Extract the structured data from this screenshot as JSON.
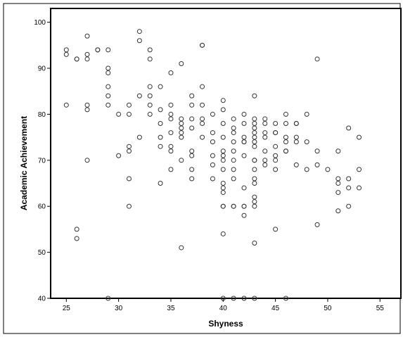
{
  "chart_data": {
    "type": "scatter",
    "xlabel": "Shyness",
    "ylabel": "Academic Achievement",
    "xlim": [
      23.5,
      57
    ],
    "ylim": [
      40,
      103
    ],
    "x_ticks": [
      25,
      30,
      35,
      40,
      45,
      50,
      55
    ],
    "y_ticks": [
      40,
      50,
      60,
      70,
      80,
      90,
      100
    ],
    "grid": false,
    "marker": "open-circle",
    "colors": {
      "marker": "#333333",
      "frame": "#000000",
      "background": "#ffffff"
    },
    "points": [
      [
        25,
        94
      ],
      [
        25,
        93
      ],
      [
        25,
        82
      ],
      [
        26,
        92
      ],
      [
        26,
        92
      ],
      [
        26,
        55
      ],
      [
        26,
        53
      ],
      [
        27,
        97
      ],
      [
        27,
        93
      ],
      [
        27,
        92
      ],
      [
        27,
        82
      ],
      [
        27,
        81
      ],
      [
        27,
        70
      ],
      [
        28,
        94
      ],
      [
        28,
        94
      ],
      [
        29,
        94
      ],
      [
        29,
        90
      ],
      [
        29,
        89
      ],
      [
        29,
        86
      ],
      [
        29,
        84
      ],
      [
        29,
        82
      ],
      [
        29,
        40
      ],
      [
        30,
        80
      ],
      [
        30,
        71
      ],
      [
        31,
        82
      ],
      [
        31,
        80
      ],
      [
        31,
        73
      ],
      [
        31,
        72
      ],
      [
        31,
        66
      ],
      [
        31,
        60
      ],
      [
        32,
        98
      ],
      [
        32,
        96
      ],
      [
        32,
        84
      ],
      [
        32,
        75
      ],
      [
        33,
        94
      ],
      [
        33,
        92
      ],
      [
        33,
        86
      ],
      [
        33,
        84
      ],
      [
        33,
        82
      ],
      [
        33,
        80
      ],
      [
        34,
        86
      ],
      [
        34,
        81
      ],
      [
        34,
        78
      ],
      [
        34,
        75
      ],
      [
        34,
        73
      ],
      [
        34,
        65
      ],
      [
        35,
        89
      ],
      [
        35,
        82
      ],
      [
        35,
        80
      ],
      [
        35,
        79
      ],
      [
        35,
        76
      ],
      [
        35,
        73
      ],
      [
        35,
        72
      ],
      [
        35,
        68
      ],
      [
        36,
        91
      ],
      [
        36,
        79
      ],
      [
        36,
        78
      ],
      [
        36,
        77
      ],
      [
        36,
        76
      ],
      [
        36,
        75
      ],
      [
        36,
        70
      ],
      [
        36,
        51
      ],
      [
        37,
        84
      ],
      [
        37,
        82
      ],
      [
        37,
        79
      ],
      [
        37,
        77
      ],
      [
        37,
        72
      ],
      [
        37,
        71
      ],
      [
        37,
        68
      ],
      [
        37,
        66
      ],
      [
        38,
        95
      ],
      [
        38,
        95
      ],
      [
        38,
        86
      ],
      [
        38,
        82
      ],
      [
        38,
        79
      ],
      [
        38,
        78
      ],
      [
        38,
        75
      ],
      [
        39,
        80
      ],
      [
        39,
        76
      ],
      [
        39,
        74
      ],
      [
        39,
        71
      ],
      [
        39,
        69
      ],
      [
        39,
        66
      ],
      [
        40,
        83
      ],
      [
        40,
        81
      ],
      [
        40,
        78
      ],
      [
        40,
        75
      ],
      [
        40,
        72
      ],
      [
        40,
        71
      ],
      [
        40,
        70
      ],
      [
        40,
        68
      ],
      [
        40,
        65
      ],
      [
        40,
        64
      ],
      [
        40,
        63
      ],
      [
        40,
        60
      ],
      [
        40,
        60
      ],
      [
        40,
        54
      ],
      [
        40,
        40
      ],
      [
        41,
        79
      ],
      [
        41,
        77
      ],
      [
        41,
        76
      ],
      [
        41,
        74
      ],
      [
        41,
        72
      ],
      [
        41,
        70
      ],
      [
        41,
        68
      ],
      [
        41,
        66
      ],
      [
        41,
        60
      ],
      [
        41,
        60
      ],
      [
        41,
        40
      ],
      [
        42,
        80
      ],
      [
        42,
        78
      ],
      [
        42,
        75
      ],
      [
        42,
        74
      ],
      [
        42,
        74
      ],
      [
        42,
        71
      ],
      [
        42,
        64
      ],
      [
        42,
        60
      ],
      [
        42,
        60
      ],
      [
        42,
        58
      ],
      [
        42,
        40
      ],
      [
        43,
        84
      ],
      [
        43,
        79
      ],
      [
        43,
        78
      ],
      [
        43,
        77
      ],
      [
        43,
        76
      ],
      [
        43,
        75
      ],
      [
        43,
        74
      ],
      [
        43,
        73
      ],
      [
        43,
        70
      ],
      [
        43,
        70
      ],
      [
        43,
        68
      ],
      [
        43,
        66
      ],
      [
        43,
        65
      ],
      [
        43,
        62
      ],
      [
        43,
        61
      ],
      [
        43,
        60
      ],
      [
        43,
        52
      ],
      [
        43,
        40
      ],
      [
        44,
        79
      ],
      [
        44,
        78
      ],
      [
        44,
        76
      ],
      [
        44,
        75
      ],
      [
        44,
        72
      ],
      [
        44,
        70
      ],
      [
        44,
        69
      ],
      [
        45,
        78
      ],
      [
        45,
        76
      ],
      [
        45,
        76
      ],
      [
        45,
        73
      ],
      [
        45,
        71
      ],
      [
        45,
        70
      ],
      [
        45,
        68
      ],
      [
        45,
        55
      ],
      [
        46,
        80
      ],
      [
        46,
        78
      ],
      [
        46,
        75
      ],
      [
        46,
        74
      ],
      [
        46,
        72
      ],
      [
        46,
        72
      ],
      [
        46,
        40
      ],
      [
        47,
        78
      ],
      [
        47,
        78
      ],
      [
        47,
        75
      ],
      [
        47,
        74
      ],
      [
        47,
        69
      ],
      [
        48,
        80
      ],
      [
        48,
        74
      ],
      [
        48,
        68
      ],
      [
        49,
        92
      ],
      [
        49,
        72
      ],
      [
        49,
        69
      ],
      [
        49,
        56
      ],
      [
        50,
        68
      ],
      [
        51,
        72
      ],
      [
        51,
        66
      ],
      [
        51,
        65
      ],
      [
        51,
        63
      ],
      [
        51,
        59
      ],
      [
        52,
        77
      ],
      [
        52,
        66
      ],
      [
        52,
        64
      ],
      [
        52,
        60
      ],
      [
        53,
        75
      ],
      [
        53,
        68
      ],
      [
        53,
        64
      ]
    ]
  }
}
